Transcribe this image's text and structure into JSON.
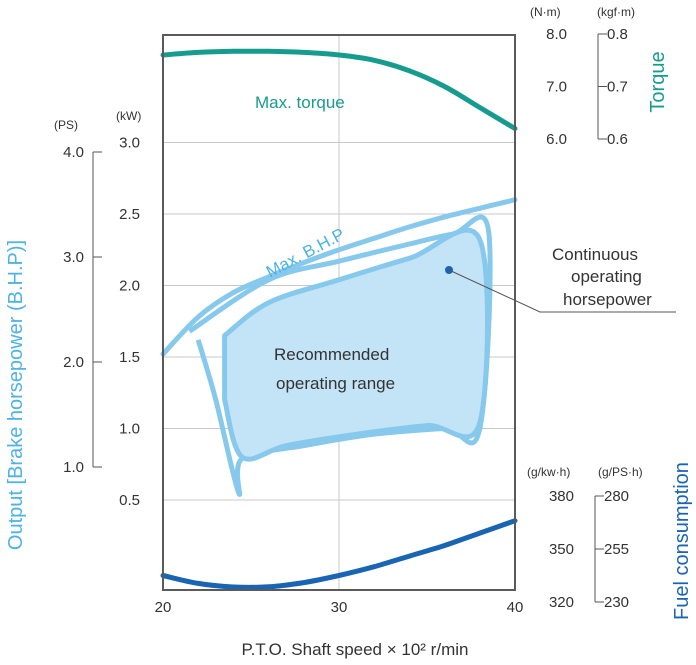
{
  "chart_data": {
    "type": "line",
    "xlabel": "P.T.O. Shaft speed × 10² r/min",
    "x_ticks": [
      "20",
      "30",
      "40"
    ],
    "xlim": [
      20,
      40
    ],
    "axes": {
      "output": {
        "title": "Output [Brake horsepower (B.H.P)]",
        "kw_unit": "(kW)",
        "kw_ticks": [
          "3.0",
          "2.5",
          "2.0",
          "1.5",
          "1.0",
          "0.5"
        ],
        "kw_range": [
          0.5,
          3.0
        ],
        "ps_unit": "(PS)",
        "ps_ticks": [
          "4.0",
          "3.0",
          "2.0",
          "1.0"
        ],
        "ps_range": [
          1.0,
          4.0
        ]
      },
      "torque": {
        "title": "Torque",
        "nm_unit": "(N·m)",
        "nm_ticks": [
          "8.0",
          "7.0",
          "6.0"
        ],
        "nm_range": [
          6.0,
          8.0
        ],
        "kgfm_unit": "(kgf·m)",
        "kgfm_ticks": [
          "0.8",
          "0.7",
          "0.6"
        ],
        "kgfm_range": [
          0.6,
          0.8
        ]
      },
      "fuel": {
        "title": "Fuel consumption",
        "gkwh_unit": "(g/kw·h)",
        "gkwh_ticks": [
          "380",
          "350",
          "320"
        ],
        "gkwh_range": [
          320,
          380
        ],
        "gpsh_unit": "(g/PS·h)",
        "gpsh_ticks": [
          "280",
          "255",
          "230"
        ],
        "gpsh_range": [
          230,
          280
        ]
      }
    },
    "series": [
      {
        "name": "Max. torque",
        "axis": "torque_nm",
        "x": [
          20,
          22,
          24,
          26,
          28,
          30,
          32,
          34,
          36,
          38,
          40
        ],
        "y": [
          7.6,
          7.65,
          7.67,
          7.67,
          7.65,
          7.6,
          7.5,
          7.3,
          7.0,
          6.6,
          6.2
        ]
      },
      {
        "name": "Max. B.H.P",
        "axis": "output_kw",
        "x": [
          20,
          22,
          24,
          26,
          28,
          30,
          32,
          34,
          36,
          38,
          40
        ],
        "y": [
          1.52,
          1.78,
          1.95,
          2.06,
          2.16,
          2.25,
          2.33,
          2.41,
          2.48,
          2.54,
          2.6
        ]
      },
      {
        "name": "",
        "axis": "fuel_gkwh",
        "x": [
          20,
          22,
          24,
          26,
          28,
          30,
          32,
          34,
          36,
          38,
          40
        ],
        "y": [
          335,
          330.5,
          328.5,
          328.6,
          331,
          335,
          340,
          346,
          352,
          359,
          366
        ]
      }
    ],
    "continuous_region": {
      "x": [
        21.5,
        26,
        30,
        34,
        36.5,
        38.5,
        38,
        36,
        32,
        28,
        24.5,
        24.3,
        23,
        22
      ],
      "y": [
        1.68,
        2.04,
        2.17,
        2.29,
        2.36,
        2.38,
        1.0,
        1.0,
        0.96,
        0.88,
        0.79,
        0.55,
        1.2,
        1.62
      ]
    },
    "recommended_region": {
      "x": [
        23.5,
        26,
        30,
        34,
        38,
        38,
        35,
        31,
        27,
        24.5,
        23.5
      ],
      "y": [
        1.65,
        1.88,
        2.04,
        2.19,
        2.32,
        1.04,
        1.02,
        0.96,
        0.88,
        0.8,
        1.2
      ]
    },
    "annotations": {
      "max_torque": "Max. torque",
      "max_bhp": "Max. B.H.P",
      "recommended": [
        "Recommended",
        "operating range"
      ],
      "continuous": [
        "Continuous",
        "operating",
        "horsepower"
      ]
    },
    "grid": true,
    "colors": {
      "torque": "#169c8e",
      "bhp": "#86c9ec",
      "fuel": "#1a64b4",
      "fill": "#c3e3f6",
      "axis_title": "#4db2e4",
      "grid": "#c8c8c8"
    }
  }
}
